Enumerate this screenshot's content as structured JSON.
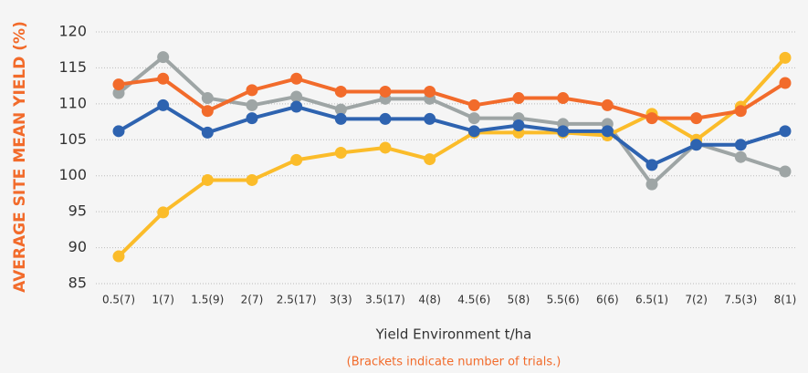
{
  "chart_data": {
    "type": "line",
    "y_label": "AVERAGE SITE MEAN YIELD (%)",
    "x_label": "Yield Environment t/ha",
    "note": "(Brackets indicate number of trials.)",
    "categories": [
      "0.5(7)",
      "1(7)",
      "1.5(9)",
      "2(7)",
      "2.5(17)",
      "3(3)",
      "3.5(17)",
      "4(8)",
      "4.5(6)",
      "5(8)",
      "5.5(6)",
      "6(6)",
      "6.5(1)",
      "7(2)",
      "7.5(3)",
      "8(1)"
    ],
    "series": [
      {
        "color": "#9ea5a5",
        "values": [
          111.5,
          116.5,
          110.8,
          109.8,
          111,
          109.2,
          110.7,
          110.7,
          108,
          108,
          107.2,
          107.2,
          98.8,
          104.5,
          102.6,
          100.6
        ]
      },
      {
        "color": "#fbbc2a",
        "values": [
          88.8,
          94.9,
          99.4,
          99.4,
          102.2,
          103.2,
          103.9,
          102.3,
          106,
          106,
          106,
          105.6,
          108.6,
          105,
          109.6,
          116.4
        ]
      },
      {
        "color": "#2e63b0",
        "values": [
          106.2,
          109.8,
          106,
          108,
          109.6,
          107.9,
          107.9,
          107.9,
          106.2,
          107,
          106.2,
          106.2,
          101.5,
          104.3,
          104.3,
          106.2
        ]
      },
      {
        "color": "#f26b2b",
        "values": [
          112.7,
          113.5,
          109,
          111.9,
          113.5,
          111.7,
          111.7,
          111.7,
          109.8,
          110.8,
          110.8,
          109.8,
          108,
          108,
          109,
          112.9
        ]
      }
    ],
    "ylim": [
      85,
      120
    ],
    "yticks": [
      85,
      90,
      95,
      100,
      105,
      110,
      115,
      120
    ],
    "grid": true,
    "accent_color": "#f26b2b"
  }
}
